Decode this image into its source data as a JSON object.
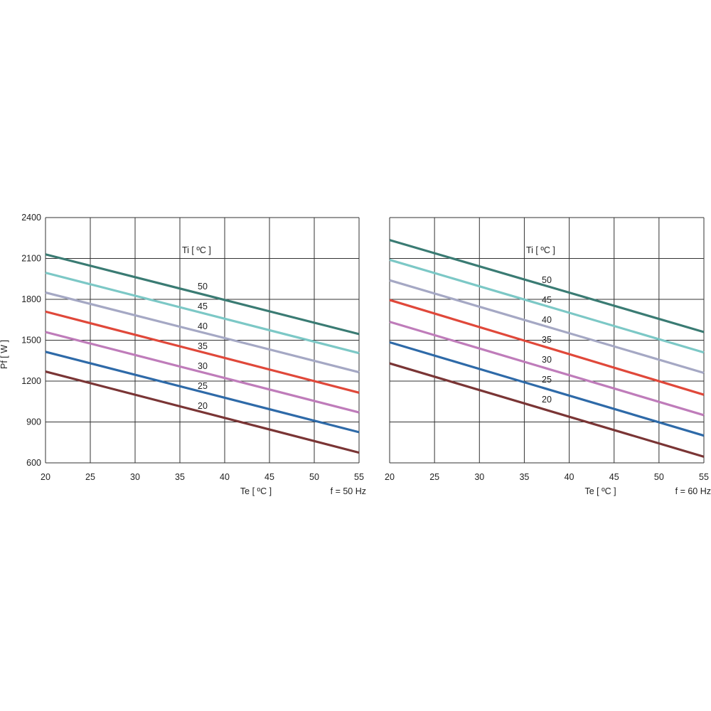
{
  "chart_data": [
    {
      "type": "line",
      "xlabel": "Te  [ ºC ]",
      "ylabel": "Pf  [ W ]",
      "note": "f = 50 Hz",
      "legend_title": "Ti  [ ºC ]",
      "xlim": [
        20,
        55
      ],
      "ylim": [
        600,
        2400
      ],
      "x_ticks": [
        "20",
        "25",
        "30",
        "35",
        "40",
        "45",
        "50",
        "55"
      ],
      "y_ticks": [
        "600",
        "900",
        "1200",
        "1500",
        "1800",
        "2100",
        "2400"
      ],
      "grid": true,
      "series": [
        {
          "name": "50",
          "color": "#3a7b73",
          "x": [
            20,
            55
          ],
          "y": [
            2130,
            1545
          ]
        },
        {
          "name": "45",
          "color": "#7cc8c6",
          "x": [
            20,
            55
          ],
          "y": [
            1995,
            1405
          ]
        },
        {
          "name": "40",
          "color": "#a5a8c4",
          "x": [
            20,
            55
          ],
          "y": [
            1850,
            1265
          ]
        },
        {
          "name": "35",
          "color": "#e0483a",
          "x": [
            20,
            55
          ],
          "y": [
            1710,
            1115
          ]
        },
        {
          "name": "30",
          "color": "#bf7cba",
          "x": [
            20,
            55
          ],
          "y": [
            1560,
            970
          ]
        },
        {
          "name": "25",
          "color": "#2e6aa8",
          "x": [
            20,
            55
          ],
          "y": [
            1415,
            825
          ]
        },
        {
          "name": "20",
          "color": "#7a3535",
          "x": [
            20,
            55
          ],
          "y": [
            1270,
            675
          ]
        }
      ]
    },
    {
      "type": "line",
      "xlabel": "Te  [ ºC ]",
      "ylabel": "",
      "note": "f = 60 Hz",
      "legend_title": "Ti  [ ºC ]",
      "xlim": [
        20,
        55
      ],
      "ylim": [
        600,
        2400
      ],
      "x_ticks": [
        "20",
        "25",
        "30",
        "35",
        "40",
        "45",
        "50",
        "55"
      ],
      "y_ticks": [],
      "grid": true,
      "series": [
        {
          "name": "50",
          "color": "#3a7b73",
          "x": [
            20,
            55
          ],
          "y": [
            2235,
            1560
          ]
        },
        {
          "name": "45",
          "color": "#7cc8c6",
          "x": [
            20,
            55
          ],
          "y": [
            2090,
            1410
          ]
        },
        {
          "name": "40",
          "color": "#a5a8c4",
          "x": [
            20,
            55
          ],
          "y": [
            1940,
            1260
          ]
        },
        {
          "name": "35",
          "color": "#e0483a",
          "x": [
            20,
            55
          ],
          "y": [
            1795,
            1100
          ]
        },
        {
          "name": "30",
          "color": "#bf7cba",
          "x": [
            20,
            55
          ],
          "y": [
            1635,
            950
          ]
        },
        {
          "name": "25",
          "color": "#2e6aa8",
          "x": [
            20,
            55
          ],
          "y": [
            1485,
            800
          ]
        },
        {
          "name": "20",
          "color": "#7a3535",
          "x": [
            20,
            55
          ],
          "y": [
            1330,
            645
          ]
        }
      ]
    }
  ]
}
